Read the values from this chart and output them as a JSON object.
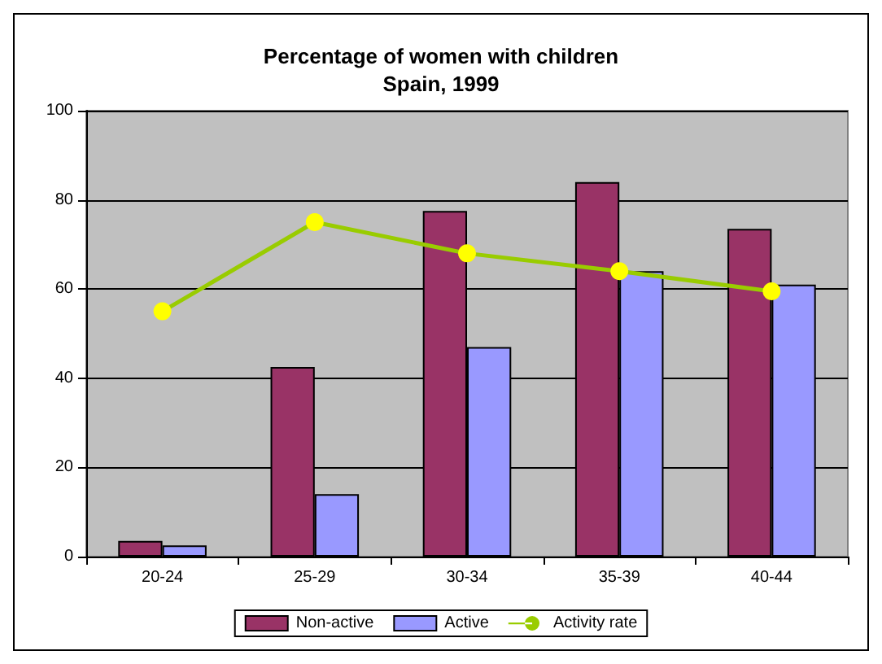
{
  "chart_data": {
    "type": "bar",
    "title": "Percentage of women with children\nSpain, 1999",
    "categories": [
      "20-24",
      "25-29",
      "30-34",
      "35-39",
      "40-44"
    ],
    "series": [
      {
        "name": "Non-active",
        "color": "#993366",
        "values": [
          3.5,
          42.5,
          77.5,
          84,
          73.5
        ]
      },
      {
        "name": "Active",
        "color": "#9999ff",
        "values": [
          2.5,
          14,
          47,
          64,
          61
        ]
      },
      {
        "name": "Activity rate",
        "type": "line",
        "color": "#99cc00",
        "values": [
          55,
          75,
          68,
          64,
          59.5
        ],
        "marker": "circle"
      }
    ],
    "ylim": [
      0,
      100
    ],
    "yticks": [
      0,
      20,
      40,
      60,
      80,
      100
    ],
    "grid": "y",
    "legend": "bottom"
  }
}
